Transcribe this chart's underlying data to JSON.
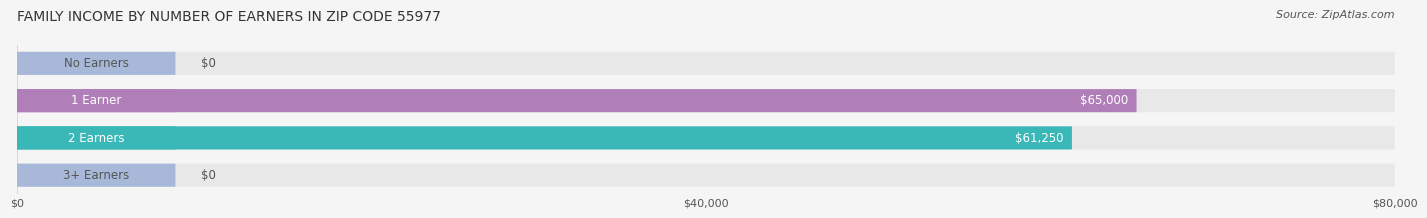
{
  "title": "FAMILY INCOME BY NUMBER OF EARNERS IN ZIP CODE 55977",
  "source": "Source: ZipAtlas.com",
  "categories": [
    "No Earners",
    "1 Earner",
    "2 Earners",
    "3+ Earners"
  ],
  "values": [
    0,
    65000,
    61250,
    0
  ],
  "bar_colors": [
    "#a8b8d8",
    "#b07fba",
    "#3ab8b8",
    "#a8b8d8"
  ],
  "label_colors": [
    "#555555",
    "#ffffff",
    "#ffffff",
    "#555555"
  ],
  "value_labels": [
    "$0",
    "$65,000",
    "$61,250",
    "$0"
  ],
  "xlim": [
    0,
    80000
  ],
  "xticks": [
    0,
    40000,
    80000
  ],
  "xticklabels": [
    "$0",
    "$40,000",
    "$80,000"
  ],
  "background_color": "#f0f0f0",
  "bar_background_color": "#e8e8e8",
  "title_fontsize": 10,
  "source_fontsize": 8,
  "label_fontsize": 8.5,
  "value_fontsize": 8.5,
  "bar_height": 0.62,
  "fig_width": 14.06,
  "fig_height": 2.33
}
